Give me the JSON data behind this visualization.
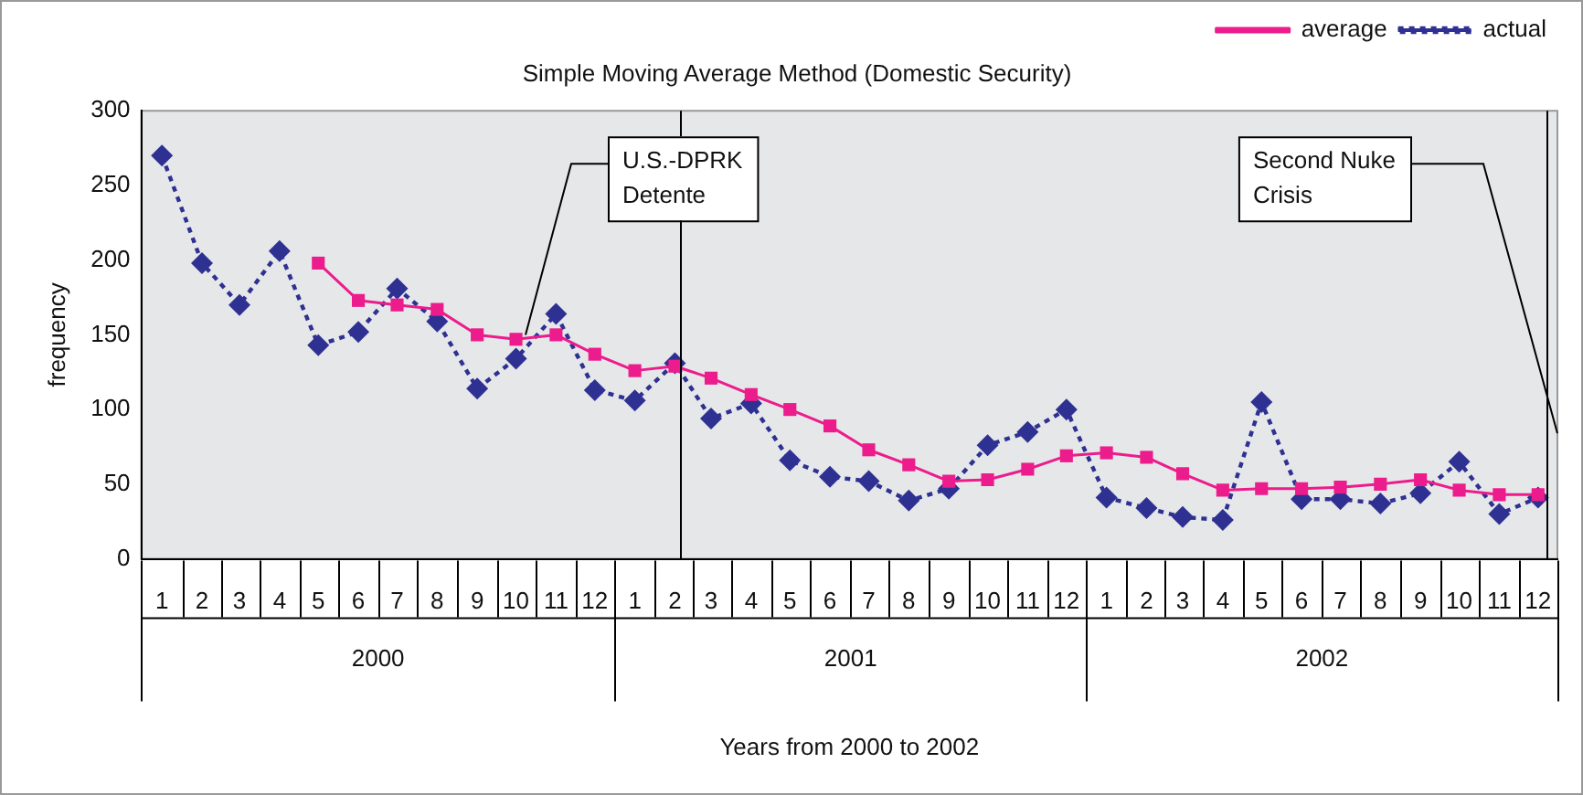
{
  "chart_data": {
    "type": "line",
    "title": "Simple Moving Average Method (Domestic Security)",
    "xlabel": "Years from 2000 to 2002",
    "ylabel": "frequency",
    "xlim": [
      "1999-12-16",
      "2002-12-16"
    ],
    "xticks": [
      {
        "value": "2000-01",
        "label": "1"
      },
      {
        "value": "2000-02",
        "label": "2"
      },
      {
        "value": "2000-03",
        "label": "3"
      },
      {
        "value": "2000-04",
        "label": "4"
      },
      {
        "value": "2000-05",
        "label": "5"
      },
      {
        "value": "2000-06",
        "label": "6"
      },
      {
        "value": "2000-07",
        "label": "7"
      },
      {
        "value": "2000-08",
        "label": "8"
      },
      {
        "value": "2000-09",
        "label": "9"
      },
      {
        "value": "2000-10",
        "label": "10"
      },
      {
        "value": "2000-11",
        "label": "11"
      },
      {
        "value": "2000-12",
        "label": "12"
      },
      {
        "value": "2001-01",
        "label": "1"
      },
      {
        "value": "2001-02",
        "label": "2"
      },
      {
        "value": "2001-03",
        "label": "3"
      },
      {
        "value": "2001-04",
        "label": "4"
      },
      {
        "value": "2001-05",
        "label": "5"
      },
      {
        "value": "2001-06",
        "label": "6"
      },
      {
        "value": "2001-07",
        "label": "7"
      },
      {
        "value": "2001-08",
        "label": "8"
      },
      {
        "value": "2001-09",
        "label": "9"
      },
      {
        "value": "2001-10",
        "label": "10"
      },
      {
        "value": "2001-11",
        "label": "11"
      },
      {
        "value": "2001-12",
        "label": "12"
      },
      {
        "value": "2002-01",
        "label": "1"
      },
      {
        "value": "2002-02",
        "label": "2"
      },
      {
        "value": "2002-03",
        "label": "3"
      },
      {
        "value": "2002-04",
        "label": "4"
      },
      {
        "value": "2002-05",
        "label": "5"
      },
      {
        "value": "2002-06",
        "label": "6"
      },
      {
        "value": "2002-07",
        "label": "7"
      },
      {
        "value": "2002-08",
        "label": "8"
      },
      {
        "value": "2002-09",
        "label": "9"
      },
      {
        "value": "2002-10",
        "label": "10"
      },
      {
        "value": "2002-11",
        "label": "11"
      },
      {
        "value": "2002-12",
        "label": "12"
      }
    ],
    "ylim": [
      0,
      300
    ],
    "yticks": [
      0,
      50,
      100,
      150,
      200,
      250,
      300
    ],
    "annotations": [
      "2000",
      "2001",
      "2002"
    ],
    "ref_lines": [
      {
        "axis": "x",
        "value": "2001-02-05",
        "label": "U.S.-DPRK Detente",
        "color": "#000000"
      },
      {
        "axis": "x",
        "value": "2002-12-07",
        "label": "Second Nuke Crisis",
        "color": "#000000"
      }
    ],
    "legend": "top right",
    "grid": false,
    "x": [
      "2000-01",
      "2000-02",
      "2000-03",
      "2000-04",
      "2000-05",
      "2000-06",
      "2000-07",
      "2000-08",
      "2000-09",
      "2000-10",
      "2000-11",
      "2000-12",
      "2001-01",
      "2001-02",
      "2001-03",
      "2001-04",
      "2001-05",
      "2001-06",
      "2001-07",
      "2001-08",
      "2001-09",
      "2001-10",
      "2001-11",
      "2001-12",
      "2002-01",
      "2002-02",
      "2002-03",
      "2002-04",
      "2002-05",
      "2002-06",
      "2002-07",
      "2002-08",
      "2002-09",
      "2002-10",
      "2002-11",
      "2002-12"
    ],
    "series": [
      {
        "name": "actual",
        "color": "#2e3192",
        "marker": "diamond",
        "line_style": "dotted",
        "values": [
          270,
          198,
          170,
          206,
          143,
          152,
          181,
          159,
          114,
          134,
          164,
          113,
          106,
          131,
          94,
          104,
          66,
          55,
          52,
          39,
          47,
          76,
          85,
          100,
          41,
          34,
          28,
          26,
          105,
          40,
          40,
          37,
          44,
          65,
          30,
          41
        ]
      },
      {
        "name": "average",
        "color": "#ec1c8c",
        "marker": "square",
        "line_style": "solid",
        "x": [
          "2000-05",
          "2000-06",
          "2000-07",
          "2000-08",
          "2000-09",
          "2000-10",
          "2000-11",
          "2000-12",
          "2001-01",
          "2001-02",
          "2001-03",
          "2001-04",
          "2001-05",
          "2001-06",
          "2001-07",
          "2001-08",
          "2001-09",
          "2001-10",
          "2001-11",
          "2001-12",
          "2002-01",
          "2002-02",
          "2002-03",
          "2002-04",
          "2002-05",
          "2002-06",
          "2002-07",
          "2002-08",
          "2002-09",
          "2002-10",
          "2002-11",
          "2002-12"
        ],
        "values": [
          198,
          173,
          170,
          167,
          150,
          147,
          150,
          137,
          126,
          129,
          121,
          110,
          100,
          89,
          73,
          63,
          52,
          53,
          60,
          69,
          71,
          68,
          57,
          46,
          47,
          47,
          48,
          50,
          53,
          46,
          43,
          43
        ]
      }
    ]
  }
}
